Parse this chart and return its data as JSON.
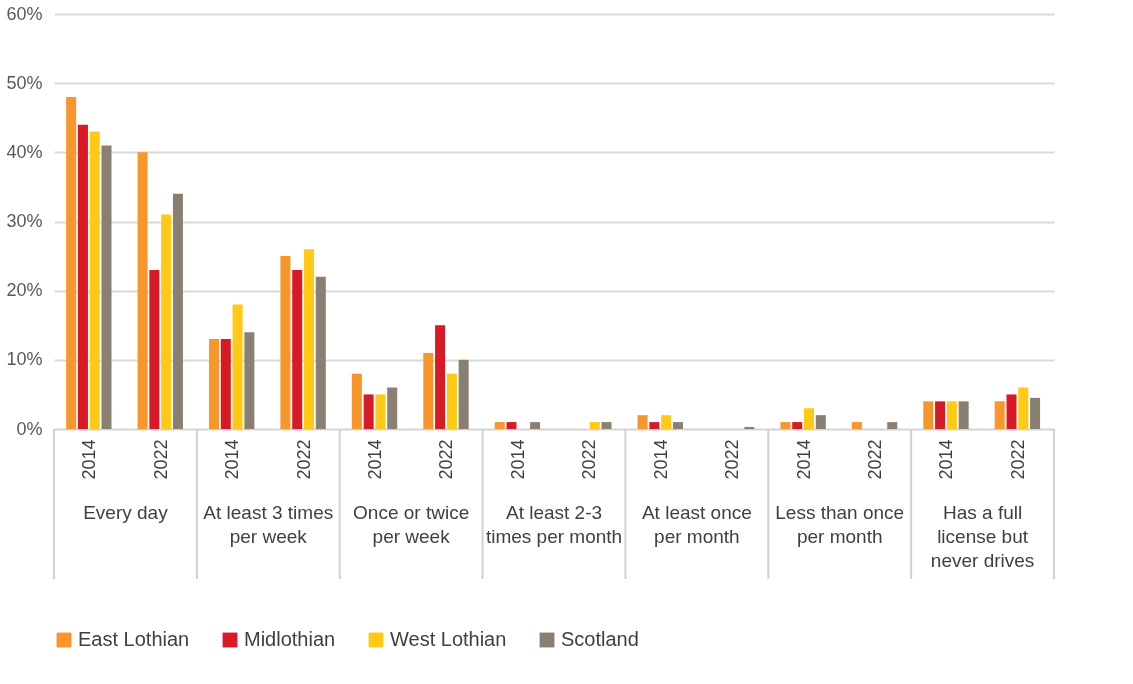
{
  "chart_data": {
    "type": "bar",
    "categories": [
      "2014",
      "2022",
      "2014",
      "2022",
      "2014",
      "2022",
      "2014",
      "2022",
      "2014",
      "2022",
      "2014",
      "2022",
      "2014",
      "2022"
    ],
    "series": [
      {
        "name": "East Lothian",
        "color": "#f7962a",
        "values": [
          48,
          40,
          13,
          25,
          8,
          11,
          1,
          0,
          2,
          0,
          1,
          1,
          4,
          4
        ]
      },
      {
        "name": "Midlothian",
        "color": "#d71a26",
        "values": [
          44,
          23,
          13,
          23,
          5,
          15,
          1,
          0,
          1,
          0,
          1,
          0,
          4,
          5
        ]
      },
      {
        "name": "West Lothian",
        "color": "#ffc914",
        "values": [
          43,
          31,
          18,
          26,
          5,
          8,
          0,
          1,
          2,
          0,
          3,
          0,
          4,
          6
        ]
      },
      {
        "name": "Scotland",
        "color": "#8a8072",
        "values": [
          41,
          34,
          14,
          22,
          6,
          10,
          1,
          1,
          1,
          0.3,
          2,
          1,
          4,
          4.5
        ]
      }
    ],
    "annotations": [
      "Every day",
      "At least 3 times per week",
      "Once or twice per week",
      "At least 2-3 times per month",
      "At least once per month",
      "Less than once per month",
      "Has a full license but never drives"
    ],
    "ylim": [
      0,
      60
    ],
    "yticks": [
      {
        "value": 0,
        "label": "0%"
      },
      {
        "value": 10,
        "label": "10%"
      },
      {
        "value": 20,
        "label": "20%"
      },
      {
        "value": 30,
        "label": "30%"
      },
      {
        "value": 40,
        "label": "40%"
      },
      {
        "value": 50,
        "label": "50%"
      },
      {
        "value": 60,
        "label": "60%"
      }
    ],
    "grid": "y",
    "legend": "bottom"
  }
}
